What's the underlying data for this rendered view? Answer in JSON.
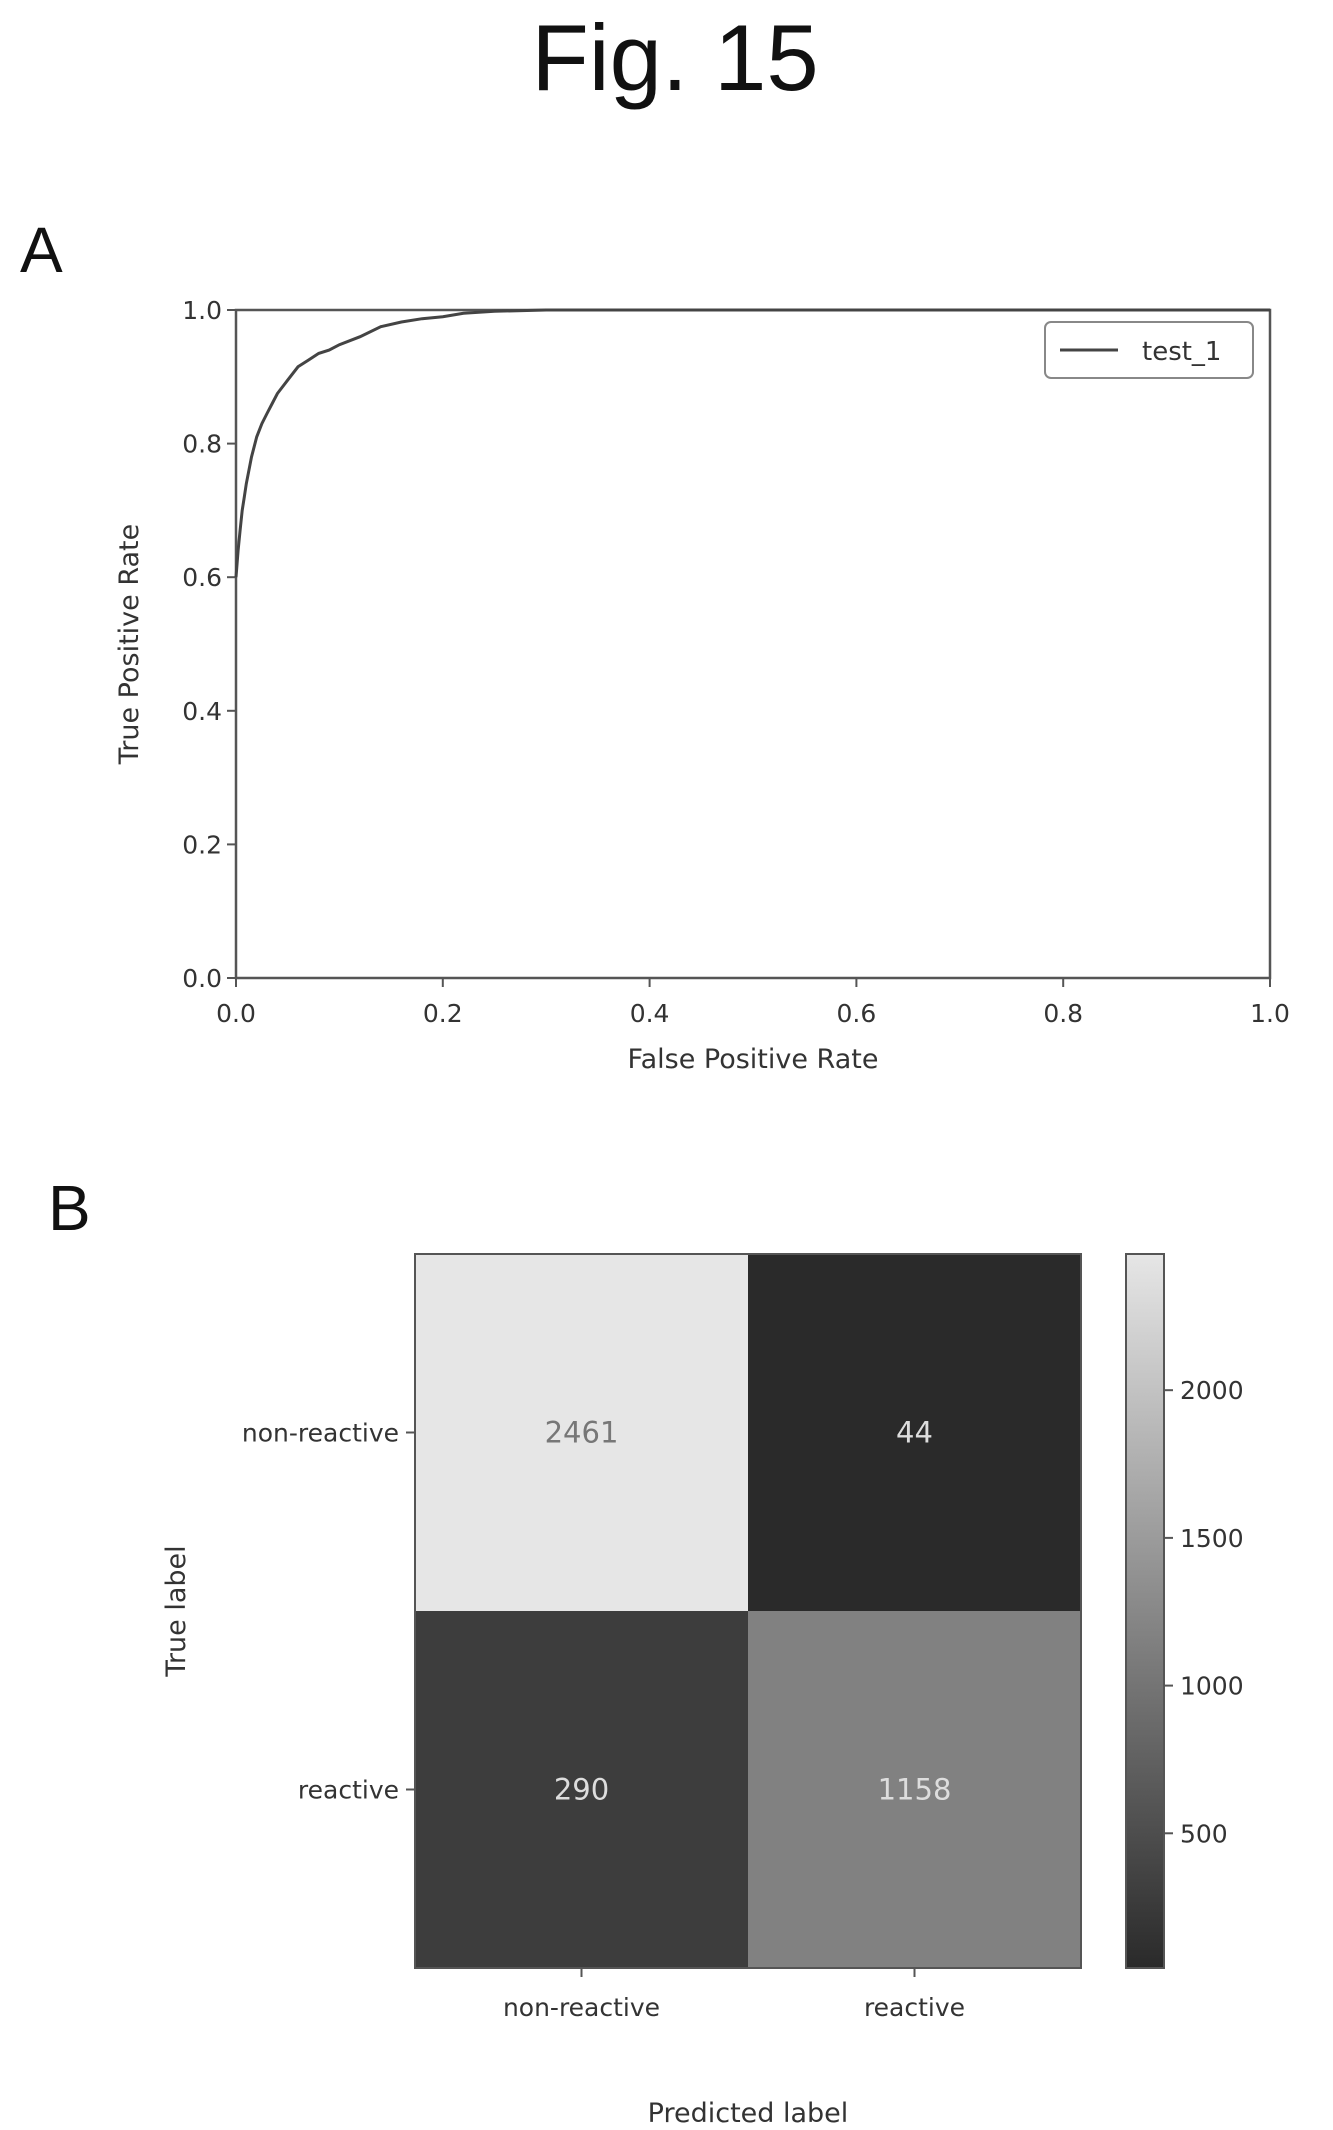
{
  "figure": {
    "title": "Fig. 15",
    "panels": [
      {
        "letter": "A"
      },
      {
        "letter": "B"
      }
    ]
  },
  "chart_data": [
    {
      "type": "line",
      "title": "",
      "xlabel": "False Positive Rate",
      "ylabel": "True Positive Rate",
      "xlim": [
        0.0,
        1.0
      ],
      "ylim": [
        0.0,
        1.0
      ],
      "xticks": [
        "0.0",
        "0.2",
        "0.4",
        "0.6",
        "0.8",
        "1.0"
      ],
      "yticks": [
        "0.0",
        "0.2",
        "0.4",
        "0.6",
        "0.8",
        "1.0"
      ],
      "grid": false,
      "legend": "top-right",
      "series": [
        {
          "name": "test_1",
          "color": "#444444",
          "x": [
            0.0,
            0.002,
            0.004,
            0.006,
            0.008,
            0.01,
            0.015,
            0.02,
            0.025,
            0.03,
            0.035,
            0.04,
            0.05,
            0.06,
            0.07,
            0.08,
            0.09,
            0.1,
            0.12,
            0.14,
            0.16,
            0.18,
            0.2,
            0.22,
            0.25,
            0.3,
            1.0
          ],
          "y": [
            0.6,
            0.64,
            0.67,
            0.7,
            0.72,
            0.74,
            0.78,
            0.81,
            0.83,
            0.845,
            0.86,
            0.875,
            0.895,
            0.915,
            0.925,
            0.935,
            0.94,
            0.948,
            0.96,
            0.975,
            0.982,
            0.987,
            0.99,
            0.995,
            0.998,
            1.0,
            1.0
          ]
        }
      ]
    },
    {
      "type": "heatmap",
      "title": "",
      "xlabel": "Predicted label",
      "ylabel": "True label",
      "x_categories": [
        "non-reactive",
        "reactive"
      ],
      "y_categories": [
        "non-reactive",
        "reactive"
      ],
      "values": [
        [
          2461,
          44
        ],
        [
          290,
          1158
        ]
      ],
      "colorbar": {
        "ticks": [
          "2000",
          "1500",
          "1000",
          "500"
        ],
        "tick_values": [
          2000,
          1500,
          1000,
          500
        ],
        "range": [
          44,
          2461
        ]
      }
    }
  ]
}
